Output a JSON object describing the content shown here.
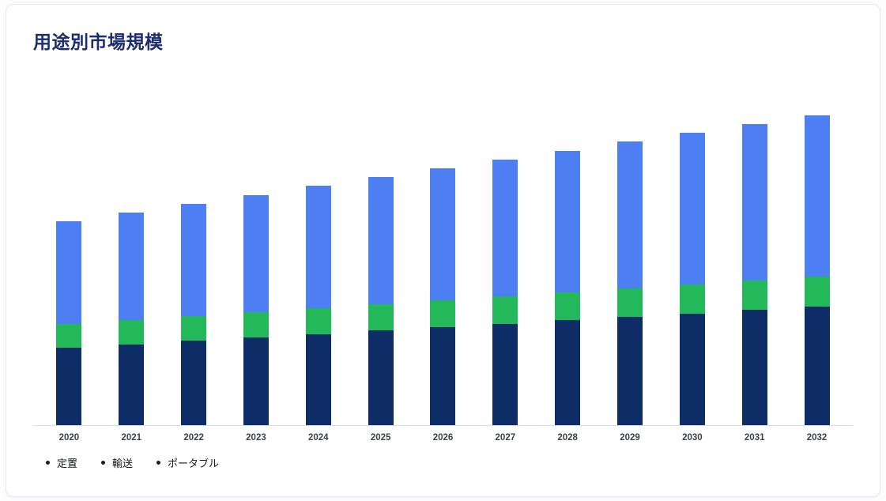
{
  "card": {
    "title": "用途別市場規模"
  },
  "chart_data": {
    "type": "bar",
    "stacked": true,
    "title": "用途別市場規模",
    "xlabel": "",
    "ylabel": "",
    "grid": false,
    "legend_position": "bottom-left",
    "categories": [
      "2020",
      "2021",
      "2022",
      "2023",
      "2024",
      "2025",
      "2026",
      "2027",
      "2028",
      "2029",
      "2030",
      "2031",
      "2032"
    ],
    "series": [
      {
        "name": "定置",
        "color": "#0e2c66",
        "values": [
          9.8,
          10.2,
          10.7,
          11.1,
          11.5,
          12.0,
          12.4,
          12.8,
          13.3,
          13.7,
          14.1,
          14.6,
          15.0
        ]
      },
      {
        "name": "輸送",
        "color": "#23b95a",
        "values": [
          3.0,
          3.1,
          3.1,
          3.2,
          3.3,
          3.3,
          3.4,
          3.5,
          3.5,
          3.6,
          3.7,
          3.7,
          3.8
        ]
      },
      {
        "name": "ポータブル",
        "color": "#4d7ff2",
        "values": [
          13.0,
          13.6,
          14.2,
          14.8,
          15.5,
          16.1,
          16.7,
          17.3,
          17.9,
          18.6,
          19.2,
          19.8,
          20.4
        ]
      }
    ]
  }
}
